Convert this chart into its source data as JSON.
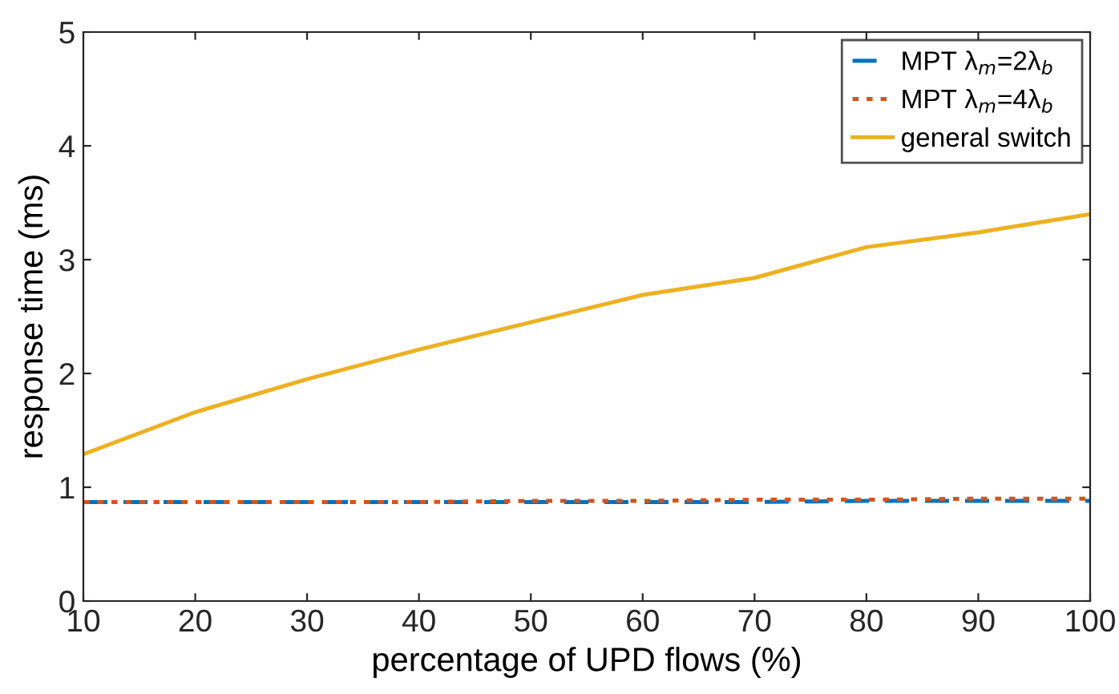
{
  "chart_data": {
    "type": "line",
    "xlabel": "percentage of UPD flows (%)",
    "ylabel": "response time (ms)",
    "x": [
      10,
      20,
      30,
      40,
      50,
      60,
      70,
      80,
      90,
      100
    ],
    "series": [
      {
        "name": "MPT λ$_{m}$=2λ$_{b}$",
        "color": "#0072bd",
        "line_style": "dashed",
        "values": [
          0.87,
          0.87,
          0.87,
          0.87,
          0.87,
          0.87,
          0.87,
          0.88,
          0.88,
          0.88
        ]
      },
      {
        "name": "MPT λ$_{m}$=4λ$_{b}$",
        "color": "#d95319",
        "line_style": "dotted",
        "values": [
          0.87,
          0.87,
          0.87,
          0.87,
          0.88,
          0.88,
          0.89,
          0.89,
          0.9,
          0.9
        ]
      },
      {
        "name": "general switch",
        "color": "#edb120",
        "line_style": "solid",
        "values": [
          1.29,
          1.66,
          1.95,
          2.21,
          2.45,
          2.69,
          2.84,
          3.11,
          3.24,
          3.4
        ]
      }
    ],
    "xlim": [
      10,
      100
    ],
    "xticks": [
      10,
      20,
      30,
      40,
      50,
      60,
      70,
      80,
      90,
      100
    ],
    "ylim": [
      0,
      5
    ],
    "yticks": [
      0,
      1,
      2,
      3,
      4,
      5
    ],
    "grid": false,
    "legend": "top right",
    "marker": "none"
  }
}
